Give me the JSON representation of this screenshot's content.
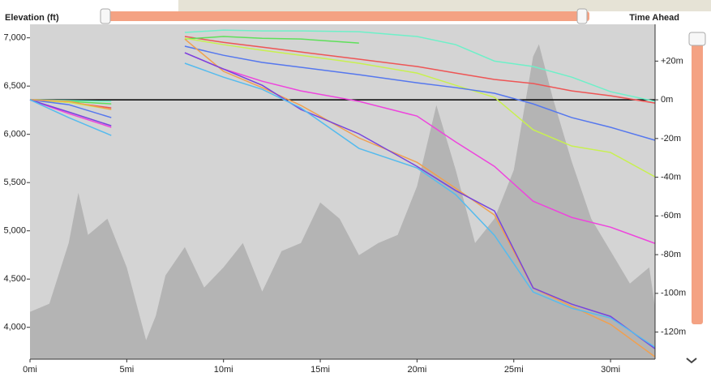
{
  "chart_data": {
    "type": "line",
    "y_label": "Elevation (ft)",
    "y2_label": "Time Ahead",
    "xlim": [
      0,
      32.3
    ],
    "ylim": [
      3670,
      7140
    ],
    "y2lim": [
      -134,
      39
    ],
    "xticks": [
      {
        "value": 0,
        "label": "0mi"
      },
      {
        "value": 5,
        "label": "5mi"
      },
      {
        "value": 10,
        "label": "10mi"
      },
      {
        "value": 15,
        "label": "15mi"
      },
      {
        "value": 20,
        "label": "20mi"
      },
      {
        "value": 25,
        "label": "25mi"
      },
      {
        "value": 30,
        "label": "30mi"
      }
    ],
    "yticks": [
      {
        "value": 4000,
        "label": "4,000"
      },
      {
        "value": 4500,
        "label": "4,500"
      },
      {
        "value": 5000,
        "label": "5,000"
      },
      {
        "value": 5500,
        "label": "5,500"
      },
      {
        "value": 6000,
        "label": "6,000"
      },
      {
        "value": 6500,
        "label": "6,500"
      },
      {
        "value": 7000,
        "label": "7,000"
      }
    ],
    "y2ticks": [
      {
        "value": 20,
        "label": "+20m"
      },
      {
        "value": 0,
        "label": "0m"
      },
      {
        "value": -20,
        "label": "-20m"
      },
      {
        "value": -40,
        "label": "-40m"
      },
      {
        "value": -60,
        "label": "-60m"
      },
      {
        "value": -80,
        "label": "-80m"
      },
      {
        "value": -100,
        "label": "-100m"
      },
      {
        "value": -120,
        "label": "-120m"
      }
    ],
    "profile": {
      "color": "#b4b4b4",
      "x": [
        0,
        1,
        2,
        2.5,
        3,
        3.5,
        4,
        5,
        6,
        6.5,
        7,
        8,
        9,
        10,
        11,
        12,
        13,
        14,
        15,
        16,
        17,
        18,
        19,
        20,
        21,
        22,
        23,
        24,
        25,
        26,
        26.3,
        27,
        28,
        29,
        30,
        31,
        32,
        32.3
      ],
      "values": [
        4160,
        4244,
        4874,
        5395,
        4958,
        5042,
        5126,
        4622,
        3866,
        4118,
        4538,
        4832,
        4412,
        4622,
        4874,
        4370,
        4790,
        4874,
        5294,
        5126,
        4748,
        4874,
        4958,
        5462,
        6302,
        5630,
        4874,
        5126,
        5630,
        6807,
        6933,
        6387,
        5714,
        5126,
        4790,
        4454,
        4622,
        4202
      ]
    },
    "x": [
      0,
      2,
      4.2,
      6,
      8,
      10,
      12,
      14,
      17,
      20,
      22,
      24,
      26,
      28,
      30,
      32.3
    ],
    "series": [
      {
        "color": "#6ef0c8",
        "axis": "y2",
        "values": [
          0,
          -0.4,
          -0.8,
          null,
          34.8,
          36,
          35.6,
          35.6,
          35.2,
          32.7,
          28.5,
          20,
          17.2,
          11.7,
          4.2,
          -0.8
        ]
      },
      {
        "color": "#ee5555",
        "axis": "y2",
        "values": [
          0,
          -1.3,
          -4.2,
          null,
          32.7,
          29.7,
          27.2,
          24.7,
          21,
          17.2,
          13.8,
          10.5,
          8.4,
          4.6,
          2.1,
          -1.7
        ]
      },
      {
        "color": "#5ee05a",
        "axis": "y2",
        "values": [
          0,
          -0.8,
          -2.1,
          null,
          31.4,
          32.7,
          31.8,
          31.4,
          29.3,
          null,
          null,
          null,
          null,
          null,
          null,
          null
        ]
      },
      {
        "color": "#c8f050",
        "axis": "y2",
        "values": [
          0,
          -1.3,
          -5,
          null,
          31.8,
          28.5,
          25.6,
          23,
          18.9,
          13.8,
          7.5,
          1.3,
          -15.5,
          -23.9,
          -27.2,
          -39.8
        ]
      },
      {
        "color": "#5577ee",
        "axis": "y2",
        "values": [
          0,
          -2.5,
          -9.2,
          null,
          27.7,
          23,
          19.3,
          16.8,
          13,
          8.8,
          6.3,
          3.4,
          -2.1,
          -9.2,
          -14.2,
          -20.9
        ]
      },
      {
        "color": "#ee44dd",
        "axis": "y2",
        "values": [
          0,
          -7.1,
          -14.2,
          null,
          24.3,
          15.9,
          9.6,
          4.6,
          -0.8,
          -8.4,
          -21.8,
          -34.4,
          -52.4,
          -60.8,
          -65.8,
          -74.2
        ]
      },
      {
        "color": "#f0a050",
        "axis": "y2",
        "values": [
          0,
          -0.8,
          -5,
          null,
          31.4,
          14.7,
          6.3,
          -2.9,
          -19.7,
          -32.3,
          -45.7,
          -59.5,
          -97.2,
          -106.8,
          -116,
          -132.8
        ]
      },
      {
        "color": "#7744dd",
        "axis": "y2",
        "values": [
          0,
          -6.3,
          -13.4,
          null,
          24.3,
          15.9,
          7.5,
          -5,
          -17.6,
          -34.4,
          -46.9,
          -57.4,
          -97.2,
          -105.6,
          -111.9,
          -128.6
        ]
      },
      {
        "color": "#55bbee",
        "axis": "y2",
        "values": [
          0,
          -9.2,
          -18.4,
          null,
          18.9,
          11.7,
          5.4,
          -4.2,
          -25.1,
          -35.2,
          -49,
          -70,
          -99.3,
          -107.7,
          -112.7,
          -127.8
        ]
      }
    ]
  }
}
